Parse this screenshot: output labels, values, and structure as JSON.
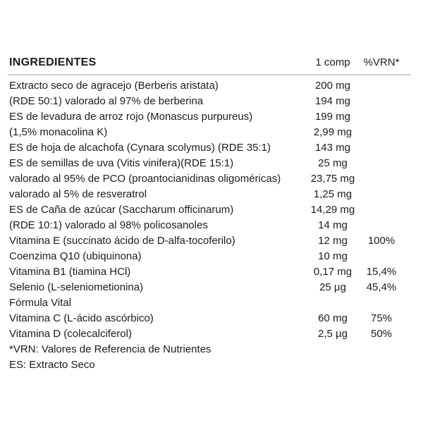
{
  "header": {
    "title": "INGREDIENTES",
    "col_amount": "1 comp",
    "col_vrn": "%VRN*"
  },
  "rows": [
    {
      "label": "Extracto seco de agracejo (Berberis aristata)",
      "amount": "200 mg",
      "vrn": ""
    },
    {
      "label": "(RDE 50:1) valorado al 97% de berberina",
      "amount": "194 mg",
      "vrn": ""
    },
    {
      "label": "ES de levadura de arroz rojo (Monascus purpureus)",
      "amount": "199 mg",
      "vrn": ""
    },
    {
      "label": "(1,5% monacolina K)",
      "amount": "2,99 mg",
      "vrn": ""
    },
    {
      "label": "ES de hoja de alcachofa (Cynara scolymus) (RDE 35:1)",
      "amount": "143 mg",
      "vrn": ""
    },
    {
      "label": "ES de semillas de uva (Vitis vinifera)(RDE 15:1)",
      "amount": "25 mg",
      "vrn": ""
    },
    {
      "label": "valorado al 95% de PCO (proantocianidinas oligoméricas)",
      "amount": "23,75 mg",
      "vrn": ""
    },
    {
      "label": "valorado al 5% de resveratrol",
      "amount": "1,25 mg",
      "vrn": ""
    },
    {
      "label": "ES de Caña de azúcar (Saccharum officinarum)",
      "amount": "14,29 mg",
      "vrn": ""
    },
    {
      "label": "(RDE 10:1) valorado al 98% policosanoles",
      "amount": "14 mg",
      "vrn": ""
    },
    {
      "label": "Vitamina E (succinato ácido de D-alfa-tocoferilo)",
      "amount": "12 mg",
      "vrn": "100%"
    },
    {
      "label": "Coenzima Q10 (ubiquinona)",
      "amount": "10 mg",
      "vrn": ""
    },
    {
      "label": "Vitamina B1 (tiamina HCl)",
      "amount": "0,17 mg",
      "vrn": "15,4%"
    },
    {
      "label": "Selenio (L-seleniometionina)",
      "amount": "25 µg",
      "vrn": "45,4%"
    },
    {
      "label": "Fórmula Vital",
      "amount": "",
      "vrn": ""
    },
    {
      "label": "Vitamina C (L-ácido ascórbico)",
      "amount": "60 mg",
      "vrn": "75%"
    },
    {
      "label": "Vitamina D (colecalciferol)",
      "amount": "2,5 µg",
      "vrn": "50%"
    }
  ],
  "footnotes": [
    "*VRN: Valores de Referencia de Nutrientes",
    "ES: Extracto Seco"
  ],
  "colors": {
    "rule": "#bfd1c8",
    "text": "#1c1c1c",
    "background": "#ffffff"
  }
}
